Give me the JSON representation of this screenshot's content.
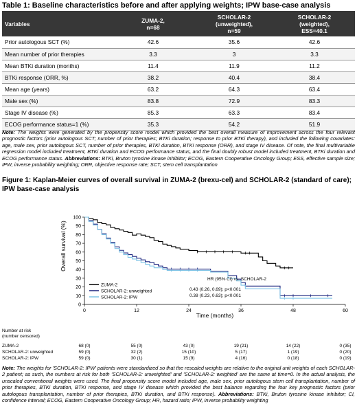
{
  "table": {
    "title": "Table 1: Baseline characteristics before and after applying weights; IPW base-case analysis",
    "headers": {
      "variables": "Variables",
      "zuma": [
        "ZUMA-2,",
        "n=68"
      ],
      "scholar_unw": [
        "SCHOLAR-2",
        "(unweighted),",
        "n=59"
      ],
      "scholar_w": [
        "SCHOLAR-2",
        "(weighted),",
        "ESS=40.1"
      ]
    },
    "rows": [
      {
        "label": "Prior autologous SCT (%)",
        "zuma": "42.6",
        "unw": "35.6",
        "w": "42.6"
      },
      {
        "label": "Mean number of prior therapies",
        "zuma": "3.3",
        "unw": "3",
        "w": "3.3"
      },
      {
        "label": "Mean BTKi duration (months)",
        "zuma": "11.4",
        "unw": "11.9",
        "w": "11.2"
      },
      {
        "label": "BTKi response (ORR, %)",
        "zuma": "38.2",
        "unw": "40.4",
        "w": "38.4"
      },
      {
        "label": "Mean age (years)",
        "zuma": "63.2",
        "unw": "64.3",
        "w": "63.4"
      },
      {
        "label": "Male sex (%)",
        "zuma": "83.8",
        "unw": "72.9",
        "w": "83.3"
      },
      {
        "label": "Stage IV disease (%)",
        "zuma": "85.3",
        "unw": "63.3",
        "w": "83.4"
      },
      {
        "label": "ECOG performance status=1 (%)",
        "zuma": "35.3",
        "unw": "54.2",
        "w": "51.9"
      }
    ],
    "note": {
      "lead": "Note:",
      "text": " The weights were generated by the propensity score model which provided the best overall measure of improvement across the four relevant prognostic factors (prior autologous SCT; number of prior therapies; BTKi duration; response to prior BTKi therapy), and included the following covariates: age, male sex, prior autologous SCT, number of prior therapies, BTKi duration, BTKi response (ORR), and stage IV disease. Of note, the final multivariable regression model included treatment, BTKi duration and ECOG performance status, and the final doubly robust model included treatment, BTKi duration and ECOG performance status. ",
      "abbr_lead": "Abbreviations:",
      "abbr": " BTKi, Bruton tyrosine kinase inhibitor; ECOG, Eastern Cooperative Oncology Group; ESS, effective sample size; IPW, inverse probability weighting; ORR, objective response rate; SCT, stem cell transplantation"
    }
  },
  "figure": {
    "title": "Figure 1: Kaplan-Meier curves of overall survival in ZUMA-2 (brexu-cel) and SCHOLAR-2 (standard of care); IPW base-case analysis",
    "risk_header": [
      "Number at risk",
      "(number censored)"
    ],
    "risk_rows": [
      {
        "label": "ZUMA-2",
        "values": [
          "68 (0)",
          "55 (0)",
          "43 (0)",
          "19 (21)",
          "14 (22)",
          "0 (35)"
        ]
      },
      {
        "label": "SCHOLAR-2: unweighted",
        "values": [
          "59 (0)",
          "32 (2)",
          "15 (10)",
          "5 (17)",
          "1 (19)",
          "0 (20)"
        ]
      },
      {
        "label": "SCHOLAR-2: IPW",
        "values": [
          "59 (0)",
          "30 (1)",
          "15 (9)",
          "4 (16)",
          "0 (18)",
          "0 (19)"
        ]
      }
    ],
    "hr_header": "HR (95% CI) vs. SCHOLAR-2",
    "hr_unw": "0.43 (0.26, 0.69); p<0.001",
    "hr_ipw": "0.38 (0.23, 0.63); p<0.001",
    "note": {
      "lead": "Note:",
      "text": " The weights for 'SCHOLAR-2: IPW' patients were standardized so that the rescaled weights are relative to the original unit weights of each SCHOLAR-2 patient; as such, the numbers at risk for both 'SCHOLAR-2: unweighted' and 'SCHOLAR-2: weighted' are the same at time=0. In the actual analysis, the unscaled conventional weights were used. The final propensity score model included age, male sex, prior autologous stem cell transplantation, number of prior therapies, BTKi duration, BTKi response, and stage IV disease which provided the best balance regarding the four key prognostic factors (prior autologous transplantation, number of prior therapies, BTKi duration, and BTKi response). ",
      "abbr_lead": "Abbreviations:",
      "abbr": " BTKi, Bruton tyrosine kinase inhibitor; CI, confidence interval; ECOG, Eastern Cooperative Oncology Group; HR, hazard ratio; IPW, inverse probability weighting"
    }
  },
  "chart_data": {
    "type": "line",
    "title": "",
    "xlabel": "Time (months)",
    "ylabel": "Overall survival (%)",
    "xlim": [
      0,
      60
    ],
    "ylim": [
      0,
      100
    ],
    "xticks": [
      0,
      12,
      24,
      36,
      48,
      60
    ],
    "yticks": [
      0,
      10,
      20,
      30,
      40,
      50,
      60,
      70,
      80,
      90,
      100
    ],
    "legend_position": "bottom-left",
    "series": [
      {
        "name": "ZUMA-2",
        "color": "#000000",
        "step_points": [
          [
            0,
            100
          ],
          [
            1,
            98.5
          ],
          [
            2,
            97
          ],
          [
            3,
            94
          ],
          [
            4,
            92.6
          ],
          [
            5,
            91.2
          ],
          [
            6,
            88.2
          ],
          [
            7,
            86.8
          ],
          [
            8,
            85.3
          ],
          [
            9,
            83.8
          ],
          [
            10,
            82.4
          ],
          [
            11,
            79.4
          ],
          [
            12,
            80.9
          ],
          [
            13,
            79.4
          ],
          [
            14,
            77.9
          ],
          [
            15,
            76.5
          ],
          [
            16,
            73.5
          ],
          [
            17,
            72
          ],
          [
            18,
            69.1
          ],
          [
            19,
            67.6
          ],
          [
            20,
            66.2
          ],
          [
            21,
            64.7
          ],
          [
            22,
            63.2
          ],
          [
            24,
            61.8
          ],
          [
            26,
            60.3
          ],
          [
            34,
            60.3
          ],
          [
            36,
            58.8
          ],
          [
            40,
            54.4
          ],
          [
            41,
            50
          ],
          [
            42,
            47
          ],
          [
            44,
            44
          ],
          [
            45,
            41.9
          ],
          [
            48,
            41.9
          ]
        ]
      },
      {
        "name": "SCHOLAR-2: unweighted",
        "color": "#1a237e",
        "step_points": [
          [
            0,
            100
          ],
          [
            1,
            96
          ],
          [
            2,
            92
          ],
          [
            3,
            86
          ],
          [
            4,
            81
          ],
          [
            5,
            76
          ],
          [
            6,
            71
          ],
          [
            7,
            66
          ],
          [
            8,
            62
          ],
          [
            9,
            59
          ],
          [
            10,
            57
          ],
          [
            11,
            55
          ],
          [
            12,
            53
          ],
          [
            13,
            51
          ],
          [
            14,
            49
          ],
          [
            15,
            48
          ],
          [
            16,
            46
          ],
          [
            17,
            44
          ],
          [
            18,
            42
          ],
          [
            19,
            40.5
          ],
          [
            28,
            40.5
          ],
          [
            29,
            38
          ],
          [
            32,
            38
          ],
          [
            33,
            33
          ],
          [
            35,
            29
          ],
          [
            36,
            25
          ],
          [
            37,
            21
          ],
          [
            44,
            21
          ],
          [
            45,
            10
          ],
          [
            57,
            10
          ]
        ]
      },
      {
        "name": "SCHOLAR-2: IPW",
        "color": "#7ec4e6",
        "step_points": [
          [
            0,
            100
          ],
          [
            1,
            95
          ],
          [
            2,
            91
          ],
          [
            3,
            86
          ],
          [
            4,
            80
          ],
          [
            5,
            75
          ],
          [
            6,
            70
          ],
          [
            7,
            64
          ],
          [
            8,
            60
          ],
          [
            9,
            57
          ],
          [
            10,
            54
          ],
          [
            11,
            52
          ],
          [
            12,
            50
          ],
          [
            13,
            48
          ],
          [
            14,
            46
          ],
          [
            15,
            44
          ],
          [
            16,
            42
          ],
          [
            18,
            40
          ],
          [
            19,
            39
          ],
          [
            28,
            39
          ],
          [
            29,
            37
          ],
          [
            32,
            37
          ],
          [
            33,
            30
          ],
          [
            35,
            27
          ],
          [
            36,
            22
          ],
          [
            37,
            18
          ],
          [
            44,
            18
          ],
          [
            45,
            7
          ],
          [
            57,
            7
          ]
        ]
      }
    ]
  }
}
